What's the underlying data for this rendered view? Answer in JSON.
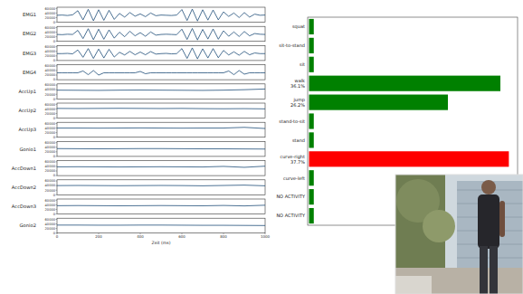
{
  "chart_data": [
    {
      "type": "line",
      "y_label": "EMG1",
      "x": [
        0,
        25,
        50,
        75,
        100,
        125,
        150,
        175,
        200,
        225,
        250,
        275,
        300,
        325,
        350,
        375,
        400,
        425,
        450,
        475,
        500,
        525,
        550,
        575,
        600,
        625,
        650,
        675,
        700,
        725,
        750,
        775,
        800,
        825,
        850,
        875,
        900,
        925,
        950,
        975,
        1000
      ],
      "series": [
        {
          "color": "#1f4e79",
          "values": [
            30000,
            31000,
            29000,
            32000,
            50000,
            10000,
            56000,
            6000,
            54000,
            8000,
            52000,
            12000,
            38000,
            22000,
            42000,
            26000,
            36000,
            24000,
            40000,
            28000,
            31000,
            30000,
            29000,
            31000,
            55000,
            7000,
            57000,
            5000,
            54000,
            9000,
            53000,
            10000,
            45000,
            25000,
            40000,
            20000,
            42000,
            22000,
            35000,
            30000,
            31000
          ]
        }
      ],
      "xlim": [
        0,
        1000
      ],
      "ylim": [
        0,
        65000
      ],
      "yticks": [
        0,
        20000,
        40000,
        60000
      ],
      "tick_labels": "y"
    },
    {
      "type": "line",
      "y_label": "EMG2",
      "x": [
        0,
        25,
        50,
        75,
        100,
        125,
        150,
        175,
        200,
        225,
        250,
        275,
        300,
        325,
        350,
        375,
        400,
        425,
        450,
        475,
        500,
        525,
        550,
        575,
        600,
        625,
        650,
        675,
        700,
        725,
        750,
        775,
        800,
        825,
        850,
        875,
        900,
        925,
        950,
        975,
        1000
      ],
      "series": [
        {
          "color": "#1f4e79",
          "values": [
            30000,
            29000,
            31000,
            30000,
            48000,
            12000,
            55000,
            7000,
            53000,
            9000,
            50000,
            14000,
            40000,
            20000,
            44000,
            24000,
            38000,
            22000,
            41000,
            27000,
            30000,
            31000,
            30000,
            29000,
            53000,
            8000,
            56000,
            6000,
            52000,
            10000,
            54000,
            9000,
            46000,
            22000,
            41000,
            21000,
            43000,
            24000,
            34000,
            31000,
            30000
          ]
        }
      ],
      "xlim": [
        0,
        1000
      ],
      "ylim": [
        0,
        65000
      ],
      "yticks": [
        0,
        20000,
        40000,
        60000
      ],
      "tick_labels": "y"
    },
    {
      "type": "line",
      "y_label": "EMG3",
      "x": [
        0,
        25,
        50,
        75,
        100,
        125,
        150,
        175,
        200,
        225,
        250,
        275,
        300,
        325,
        350,
        375,
        400,
        425,
        450,
        475,
        500,
        525,
        550,
        575,
        600,
        625,
        650,
        675,
        700,
        725,
        750,
        775,
        800,
        825,
        850,
        875,
        900,
        925,
        950,
        975,
        1000
      ],
      "series": [
        {
          "color": "#1f4e79",
          "values": [
            30000,
            30000,
            31000,
            29000,
            46000,
            14000,
            52000,
            9000,
            50000,
            11000,
            49000,
            15000,
            36000,
            24000,
            40000,
            25000,
            37000,
            25000,
            39000,
            28000,
            30000,
            31000,
            29000,
            30000,
            52000,
            9000,
            55000,
            7000,
            51000,
            11000,
            52000,
            12000,
            44000,
            24000,
            38000,
            23000,
            40000,
            25000,
            33000,
            30000,
            30000
          ]
        }
      ],
      "xlim": [
        0,
        1000
      ],
      "ylim": [
        0,
        65000
      ],
      "yticks": [
        0,
        20000,
        40000,
        60000
      ],
      "tick_labels": "y"
    },
    {
      "type": "line",
      "y_label": "EMG4",
      "x": [
        0,
        25,
        50,
        75,
        100,
        125,
        150,
        175,
        200,
        225,
        250,
        275,
        300,
        325,
        350,
        375,
        400,
        425,
        450,
        475,
        500,
        525,
        550,
        575,
        600,
        625,
        650,
        675,
        700,
        725,
        750,
        775,
        800,
        825,
        850,
        875,
        900,
        925,
        950,
        975,
        1000
      ],
      "series": [
        {
          "color": "#1f4e79",
          "values": [
            30000,
            30000,
            30000,
            30000,
            30000,
            38000,
            22000,
            40000,
            20000,
            30000,
            30000,
            30000,
            30000,
            30000,
            30000,
            30000,
            36000,
            26000,
            30000,
            30000,
            30000,
            30000,
            30000,
            30000,
            30000,
            30000,
            30000,
            30000,
            30000,
            30000,
            30000,
            30000,
            30000,
            38000,
            22000,
            40000,
            24000,
            30000,
            30000,
            30000,
            30000
          ]
        }
      ],
      "xlim": [
        0,
        1000
      ],
      "ylim": [
        0,
        65000
      ],
      "yticks": [
        0,
        20000,
        40000,
        60000
      ],
      "tick_labels": "y"
    },
    {
      "type": "line",
      "y_label": "AccUp1",
      "x": [
        0,
        100,
        200,
        300,
        400,
        500,
        600,
        700,
        800,
        900,
        1000
      ],
      "series": [
        {
          "color": "#1f4e79",
          "values": [
            38000,
            37500,
            37000,
            38000,
            38500,
            38000,
            37500,
            37000,
            38000,
            40000,
            43000
          ]
        }
      ],
      "xlim": [
        0,
        1000
      ],
      "ylim": [
        0,
        65000
      ],
      "yticks": [
        0,
        20000,
        40000,
        60000
      ],
      "tick_labels": "y"
    },
    {
      "type": "line",
      "y_label": "AccUp2",
      "x": [
        0,
        100,
        200,
        300,
        400,
        500,
        600,
        700,
        800,
        900,
        1000
      ],
      "series": [
        {
          "color": "#1f4e79",
          "values": [
            42000,
            41500,
            42000,
            42500,
            42000,
            41500,
            42000,
            41000,
            40500,
            41000,
            40000
          ]
        }
      ],
      "xlim": [
        0,
        1000
      ],
      "ylim": [
        0,
        65000
      ],
      "yticks": [
        0,
        20000,
        40000,
        60000
      ],
      "tick_labels": "y"
    },
    {
      "type": "line",
      "y_label": "AccUp3",
      "x": [
        0,
        100,
        200,
        300,
        400,
        500,
        600,
        700,
        800,
        900,
        1000
      ],
      "series": [
        {
          "color": "#1f4e79",
          "values": [
            40000,
            40000,
            39500,
            40000,
            40500,
            40000,
            39500,
            40000,
            40000,
            43000,
            38000
          ]
        }
      ],
      "xlim": [
        0,
        1000
      ],
      "ylim": [
        0,
        65000
      ],
      "yticks": [
        0,
        20000,
        40000,
        60000
      ],
      "tick_labels": "y"
    },
    {
      "type": "line",
      "y_label": "Gonio1",
      "x": [
        0,
        100,
        200,
        300,
        400,
        500,
        600,
        700,
        800,
        900,
        1000
      ],
      "series": [
        {
          "color": "#1f4e79",
          "values": [
            34000,
            33500,
            33000,
            33500,
            34000,
            34000,
            33500,
            33000,
            33000,
            32500,
            32000
          ]
        }
      ],
      "xlim": [
        0,
        1000
      ],
      "ylim": [
        0,
        65000
      ],
      "yticks": [
        0,
        20000,
        40000,
        60000
      ],
      "tick_labels": "y"
    },
    {
      "type": "line",
      "y_label": "AccDown1",
      "x": [
        0,
        100,
        200,
        300,
        400,
        500,
        600,
        700,
        800,
        900,
        1000
      ],
      "series": [
        {
          "color": "#1f4e79",
          "values": [
            38000,
            38500,
            38000,
            37500,
            38000,
            38500,
            38000,
            37500,
            40000,
            36000,
            41000
          ]
        }
      ],
      "xlim": [
        0,
        1000
      ],
      "ylim": [
        0,
        65000
      ],
      "yticks": [
        0,
        20000,
        40000,
        60000
      ],
      "tick_labels": "y"
    },
    {
      "type": "line",
      "y_label": "AccDown2",
      "x": [
        0,
        100,
        200,
        300,
        400,
        500,
        600,
        700,
        800,
        900,
        1000
      ],
      "series": [
        {
          "color": "#1f4e79",
          "values": [
            40000,
            40500,
            40000,
            39500,
            40000,
            40500,
            40000,
            39000,
            40500,
            42000,
            39000
          ]
        }
      ],
      "xlim": [
        0,
        1000
      ],
      "ylim": [
        0,
        65000
      ],
      "yticks": [
        0,
        20000,
        40000,
        60000
      ],
      "tick_labels": "y"
    },
    {
      "type": "line",
      "y_label": "AccDown3",
      "x": [
        0,
        100,
        200,
        300,
        400,
        500,
        600,
        700,
        800,
        900,
        1000
      ],
      "series": [
        {
          "color": "#1f4e79",
          "values": [
            36000,
            36500,
            36000,
            35500,
            36000,
            36500,
            36000,
            35500,
            37000,
            35000,
            38000
          ]
        }
      ],
      "xlim": [
        0,
        1000
      ],
      "ylim": [
        0,
        65000
      ],
      "yticks": [
        0,
        20000,
        40000,
        60000
      ],
      "tick_labels": "y"
    },
    {
      "type": "line",
      "y_label": "Gonio2",
      "x_label": "Zeit (ms)",
      "x": [
        0,
        100,
        200,
        300,
        400,
        500,
        600,
        700,
        800,
        900,
        1000
      ],
      "series": [
        {
          "color": "#1f4e79",
          "values": [
            35000,
            35000,
            34500,
            34500,
            35000,
            35000,
            34500,
            34000,
            34000,
            33500,
            33000
          ]
        }
      ],
      "xlim": [
        0,
        1000
      ],
      "xticks": [
        0,
        200,
        400,
        600,
        800,
        1000
      ],
      "ylim": [
        0,
        65000
      ],
      "yticks": [
        0,
        20000,
        40000,
        60000
      ]
    },
    {
      "type": "bar",
      "orientation": "horizontal",
      "categories": [
        "squat",
        "sit-to-stand",
        "sit",
        "walk",
        "jump",
        "stand-to-sit",
        "stand",
        "curve-right",
        "curve-left",
        "NO ACTIVITY",
        "NO ACTIVITY"
      ],
      "values": [
        0.9,
        0.9,
        0.9,
        36.1,
        26.2,
        0.9,
        0.9,
        37.7,
        0.9,
        0.9,
        0.9
      ],
      "value_labels": [
        null,
        null,
        null,
        "36.1%",
        "26.2%",
        null,
        null,
        "37.7%",
        null,
        null,
        null
      ],
      "colors": [
        "#008000",
        "#008000",
        "#008000",
        "#008000",
        "#008000",
        "#008000",
        "#008000",
        "#ff0000",
        "#008000",
        "#008000",
        "#008000"
      ],
      "xlim": [
        0,
        39.6
      ],
      "tick_labels": "y"
    }
  ]
}
